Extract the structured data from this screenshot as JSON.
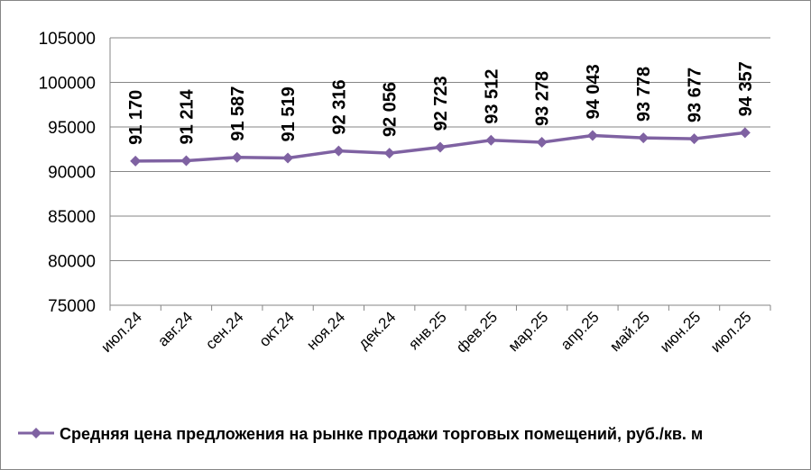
{
  "chart_data": {
    "type": "line",
    "title": "",
    "xlabel": "",
    "ylabel": "",
    "categories": [
      "июл.24",
      "авг.24",
      "сен.24",
      "окт.24",
      "ноя.24",
      "дек.24",
      "янв.25",
      "фев.25",
      "мар.25",
      "апр.25",
      "май.25",
      "июн.25",
      "июл.25"
    ],
    "series": [
      {
        "name": "Средняя цена предложения на рынке продажи торговых помещений,  руб./кв. м",
        "values": [
          91170,
          91214,
          91587,
          91519,
          92316,
          92056,
          92723,
          93512,
          93278,
          94043,
          93778,
          93677,
          94357
        ],
        "labels": [
          "91 170",
          "91 214",
          "91 587",
          "91 519",
          "92 316",
          "92 056",
          "92 723",
          "93 512",
          "93 278",
          "94 043",
          "93 778",
          "93 677",
          "94 357"
        ],
        "color": "#7f62a2"
      }
    ],
    "ylim": [
      75000,
      105000
    ],
    "yticks": [
      "75000",
      "80000",
      "85000",
      "90000",
      "95000",
      "100000",
      "105000"
    ],
    "grid": true,
    "legend_position": "bottom"
  }
}
